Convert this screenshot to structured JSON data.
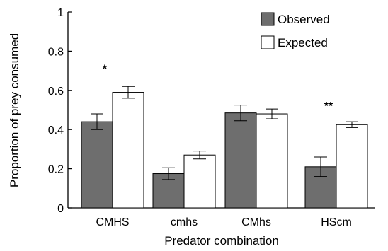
{
  "chart_data": {
    "type": "bar",
    "title": "",
    "xlabel": "Predator combination",
    "ylabel": "Proportion of prey consumed",
    "ylim": [
      0,
      1
    ],
    "yticks": [
      0,
      0.2,
      0.4,
      0.6,
      0.8,
      1
    ],
    "ytick_labels": [
      "0",
      "0.2",
      "0.4",
      "0.6",
      "0.8",
      "1"
    ],
    "categories": [
      "CMHS",
      "cmhs",
      "CMhs",
      "HScm"
    ],
    "series": [
      {
        "name": "Observed",
        "color": "#6e6e6e",
        "values": [
          0.44,
          0.175,
          0.485,
          0.21
        ],
        "errors": [
          0.04,
          0.03,
          0.04,
          0.05
        ]
      },
      {
        "name": "Expected",
        "color": "#ffffff",
        "values": [
          0.59,
          0.27,
          0.48,
          0.425
        ],
        "errors": [
          0.03,
          0.02,
          0.025,
          0.015
        ]
      }
    ],
    "annotations": [
      {
        "category": "CMHS",
        "text": "*",
        "y": 0.72
      },
      {
        "category": "HScm",
        "text": "**",
        "y": 0.53
      }
    ],
    "legend_position": "top-right",
    "grid": false
  }
}
